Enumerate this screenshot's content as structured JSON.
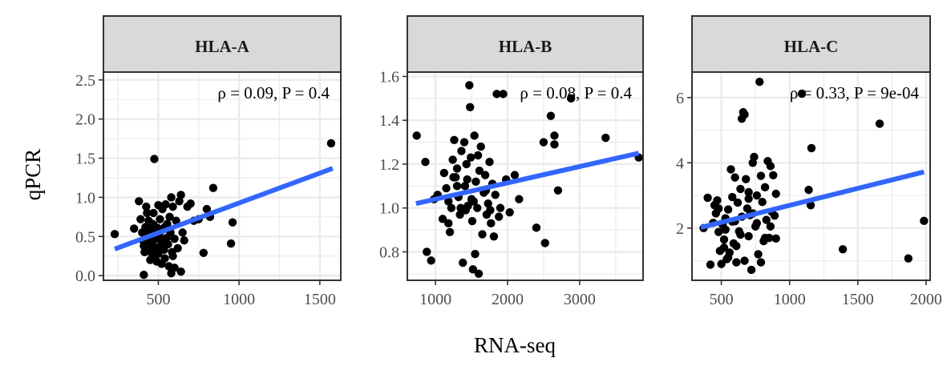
{
  "figure": {
    "xlabel": "RNA-seq",
    "ylabel": "qPCR",
    "fit_color": "#3366FF",
    "point_color": "#000000"
  },
  "chart_data": [
    {
      "type": "scatter",
      "title": "HLA-A",
      "annotation": "ρ = 0.09,  P = 0.4",
      "xlim": [
        160,
        1630
      ],
      "ylim": [
        -0.06,
        2.6
      ],
      "xticks": [
        500,
        1000,
        1500
      ],
      "yticks": [
        0.0,
        0.5,
        1.0,
        1.5,
        2.0,
        2.5
      ],
      "ytick_labels": [
        "0.0",
        "0.5",
        "1.0",
        "1.5",
        "2.0",
        "2.5"
      ],
      "fit": {
        "x": [
          230,
          1580
        ],
        "y": [
          0.34,
          1.37
        ]
      },
      "points": [
        [
          230,
          0.53
        ],
        [
          350,
          0.6
        ],
        [
          380,
          0.95
        ],
        [
          390,
          0.72
        ],
        [
          400,
          0.55
        ],
        [
          405,
          0.45
        ],
        [
          410,
          0.38
        ],
        [
          415,
          0.3
        ],
        [
          420,
          0.62
        ],
        [
          425,
          0.88
        ],
        [
          430,
          0.5
        ],
        [
          435,
          0.4
        ],
        [
          440,
          0.7
        ],
        [
          445,
          0.58
        ],
        [
          450,
          0.48
        ],
        [
          455,
          0.33
        ],
        [
          460,
          0.42
        ],
        [
          465,
          0.66
        ],
        [
          470,
          0.8
        ],
        [
          475,
          1.49
        ],
        [
          480,
          0.55
        ],
        [
          485,
          0.36
        ],
        [
          490,
          0.47
        ],
        [
          495,
          0.61
        ],
        [
          500,
          0.28
        ],
        [
          505,
          0.52
        ],
        [
          510,
          0.72
        ],
        [
          515,
          0.38
        ],
        [
          520,
          0.44
        ],
        [
          525,
          0.85
        ],
        [
          530,
          0.59
        ],
        [
          535,
          0.33
        ],
        [
          540,
          0.22
        ],
        [
          545,
          0.91
        ],
        [
          550,
          0.48
        ],
        [
          555,
          0.66
        ],
        [
          560,
          0.4
        ],
        [
          565,
          0.12
        ],
        [
          570,
          0.75
        ],
        [
          575,
          0.55
        ],
        [
          580,
          1.0
        ],
        [
          585,
          0.3
        ],
        [
          590,
          0.88
        ],
        [
          600,
          0.47
        ],
        [
          610,
          0.7
        ],
        [
          620,
          0.35
        ],
        [
          630,
          0.95
        ],
        [
          640,
          1.03
        ],
        [
          650,
          0.55
        ],
        [
          660,
          0.45
        ],
        [
          680,
          0.88
        ],
        [
          700,
          0.92
        ],
        [
          720,
          0.7
        ],
        [
          750,
          0.72
        ],
        [
          780,
          0.29
        ],
        [
          800,
          0.85
        ],
        [
          820,
          0.75
        ],
        [
          840,
          1.12
        ],
        [
          960,
          0.68
        ],
        [
          950,
          0.41
        ],
        [
          1570,
          1.69
        ],
        [
          410,
          0.01
        ],
        [
          450,
          0.2
        ],
        [
          480,
          0.22
        ],
        [
          520,
          0.15
        ],
        [
          580,
          0.03
        ],
        [
          600,
          0.1
        ],
        [
          640,
          0.05
        ],
        [
          430,
          0.8
        ],
        [
          470,
          0.65
        ],
        [
          500,
          0.9
        ],
        [
          540,
          0.62
        ],
        [
          460,
          0.28
        ],
        [
          490,
          0.18
        ],
        [
          590,
          0.25
        ]
      ]
    },
    {
      "type": "scatter",
      "title": "HLA-B",
      "annotation": "ρ = 0.08,  P = 0.4",
      "xlim": [
        610,
        3880
      ],
      "ylim": [
        0.67,
        1.62
      ],
      "xticks": [
        1000,
        2000,
        3000
      ],
      "yticks": [
        0.8,
        1.0,
        1.2,
        1.4,
        1.6
      ],
      "ytick_labels": [
        "0.8",
        "1.0",
        "1.2",
        "1.4",
        "1.6"
      ],
      "fit": {
        "x": [
          730,
          3820
        ],
        "y": [
          1.02,
          1.25
        ]
      },
      "points": [
        [
          740,
          1.33
        ],
        [
          860,
          1.21
        ],
        [
          880,
          0.8
        ],
        [
          940,
          0.76
        ],
        [
          980,
          1.04
        ],
        [
          1030,
          1.06
        ],
        [
          1100,
          0.95
        ],
        [
          1120,
          1.16
        ],
        [
          1150,
          1.09
        ],
        [
          1180,
          0.93
        ],
        [
          1200,
          0.89
        ],
        [
          1220,
          1.0
        ],
        [
          1240,
          1.22
        ],
        [
          1260,
          1.31
        ],
        [
          1280,
          1.14
        ],
        [
          1300,
          1.18
        ],
        [
          1320,
          1.05
        ],
        [
          1340,
          0.97
        ],
        [
          1360,
          1.26
        ],
        [
          1380,
          0.75
        ],
        [
          1400,
          1.3
        ],
        [
          1410,
          1.1
        ],
        [
          1430,
          1.2
        ],
        [
          1450,
          1.01
        ],
        [
          1470,
          1.56
        ],
        [
          1480,
          1.46
        ],
        [
          1490,
          1.23
        ],
        [
          1500,
          1.04
        ],
        [
          1510,
          0.94
        ],
        [
          1520,
          0.72
        ],
        [
          1540,
          1.33
        ],
        [
          1550,
          0.79
        ],
        [
          1560,
          1.12
        ],
        [
          1580,
          1.0
        ],
        [
          1600,
          0.7
        ],
        [
          1610,
          1.17
        ],
        [
          1630,
          1.28
        ],
        [
          1650,
          0.88
        ],
        [
          1670,
          1.07
        ],
        [
          1690,
          1.15
        ],
        [
          1710,
          0.97
        ],
        [
          1730,
          1.02
        ],
        [
          1750,
          1.21
        ],
        [
          1770,
          0.93
        ],
        [
          1790,
          1.11
        ],
        [
          1810,
          0.87
        ],
        [
          1830,
          1.06
        ],
        [
          1850,
          1.52
        ],
        [
          1880,
          0.96
        ],
        [
          1900,
          1.0
        ],
        [
          1940,
          1.52
        ],
        [
          1980,
          1.13
        ],
        [
          2030,
          0.98
        ],
        [
          2100,
          1.15
        ],
        [
          2160,
          1.04
        ],
        [
          2400,
          0.91
        ],
        [
          2520,
          0.84
        ],
        [
          2500,
          1.3
        ],
        [
          2600,
          1.42
        ],
        [
          2650,
          1.33
        ],
        [
          2650,
          1.29
        ],
        [
          2700,
          1.08
        ],
        [
          2880,
          1.5
        ],
        [
          3360,
          1.32
        ],
        [
          3820,
          1.23
        ],
        [
          1300,
          1.1
        ],
        [
          1350,
          1.0
        ],
        [
          1420,
          0.99
        ],
        [
          1530,
          1.03
        ],
        [
          1590,
          1.24
        ],
        [
          1700,
          1.08
        ],
        [
          1760,
          0.99
        ],
        [
          1250,
          1.14
        ],
        [
          1180,
          1.03
        ],
        [
          1440,
          1.13
        ]
      ]
    },
    {
      "type": "scatter",
      "title": "HLA-C",
      "annotation": "ρ = 0.33,  P = 9e-04",
      "xlim": [
        285,
        2030
      ],
      "ylim": [
        0.4,
        6.78
      ],
      "xticks": [
        500,
        1000,
        1500,
        2000
      ],
      "yticks": [
        2,
        4,
        6
      ],
      "ytick_labels": [
        "2",
        "4",
        "6"
      ],
      "fit": {
        "x": [
          350,
          1985
        ],
        "y": [
          2.02,
          3.72
        ]
      },
      "points": [
        [
          370,
          2.0
        ],
        [
          400,
          2.93
        ],
        [
          420,
          0.88
        ],
        [
          440,
          2.16
        ],
        [
          450,
          2.7
        ],
        [
          460,
          2.45
        ],
        [
          470,
          2.85
        ],
        [
          480,
          1.88
        ],
        [
          490,
          1.3
        ],
        [
          500,
          0.9
        ],
        [
          510,
          2.1
        ],
        [
          520,
          1.65
        ],
        [
          530,
          2.3
        ],
        [
          540,
          1.05
        ],
        [
          550,
          2.57
        ],
        [
          560,
          1.25
        ],
        [
          570,
          3.8
        ],
        [
          580,
          2.95
        ],
        [
          590,
          1.53
        ],
        [
          600,
          2.21
        ],
        [
          610,
          0.95
        ],
        [
          620,
          2.78
        ],
        [
          630,
          1.9
        ],
        [
          640,
          3.2
        ],
        [
          650,
          5.35
        ],
        [
          660,
          5.55
        ],
        [
          670,
          5.48
        ],
        [
          680,
          3.5
        ],
        [
          690,
          2.6
        ],
        [
          700,
          1.75
        ],
        [
          710,
          2.4
        ],
        [
          720,
          0.72
        ],
        [
          730,
          4.0
        ],
        [
          740,
          4.18
        ],
        [
          750,
          2.05
        ],
        [
          760,
          3.0
        ],
        [
          770,
          1.2
        ],
        [
          780,
          6.48
        ],
        [
          790,
          3.6
        ],
        [
          800,
          2.8
        ],
        [
          810,
          1.6
        ],
        [
          820,
          3.25
        ],
        [
          830,
          2.25
        ],
        [
          840,
          4.05
        ],
        [
          850,
          1.7
        ],
        [
          860,
          3.9
        ],
        [
          870,
          2.5
        ],
        [
          880,
          3.62
        ],
        [
          890,
          2.38
        ],
        [
          900,
          1.68
        ],
        [
          1090,
          6.12
        ],
        [
          1140,
          3.17
        ],
        [
          1155,
          2.7
        ],
        [
          1160,
          4.45
        ],
        [
          1390,
          1.35
        ],
        [
          1660,
          5.2
        ],
        [
          1870,
          1.07
        ],
        [
          1985,
          2.22
        ],
        [
          520,
          1.4
        ],
        [
          580,
          2.2
        ],
        [
          640,
          1.8
        ],
        [
          700,
          2.9
        ],
        [
          760,
          2.15
        ],
        [
          820,
          1.7
        ],
        [
          480,
          2.6
        ],
        [
          550,
          1.1
        ],
        [
          610,
          1.45
        ],
        [
          670,
          1.0
        ],
        [
          730,
          2.45
        ],
        [
          790,
          0.95
        ],
        [
          860,
          2.05
        ],
        [
          600,
          3.55
        ],
        [
          650,
          2.35
        ],
        [
          700,
          3.1
        ],
        [
          530,
          1.95
        ],
        [
          900,
          3.05
        ]
      ]
    }
  ]
}
